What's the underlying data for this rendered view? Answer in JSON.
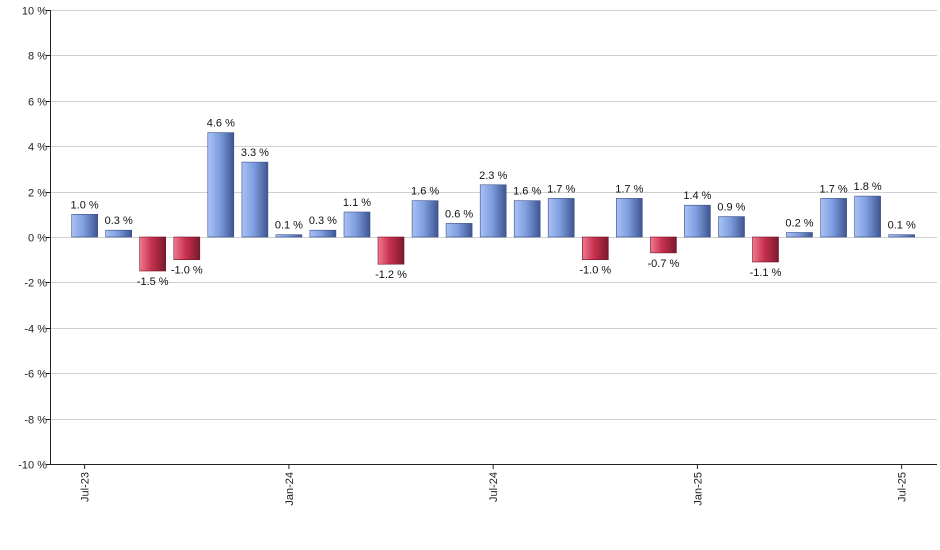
{
  "chart_data": {
    "type": "bar",
    "title": "",
    "xlabel": "",
    "ylabel": "",
    "ylim": [
      -10,
      10
    ],
    "yticks": [
      10,
      8,
      6,
      4,
      2,
      0,
      -2,
      -4,
      -6,
      -8,
      -10
    ],
    "ytick_labels": [
      "10 %",
      "8 %",
      "6 %",
      "4 %",
      "2 %",
      "0 %",
      "-2 %",
      "-4 %",
      "-6 %",
      "-8 %",
      "-10 %"
    ],
    "grid": true,
    "categories": [
      "Jul-23",
      "Aug-23",
      "Sep-23",
      "Oct-23",
      "Nov-23",
      "Dec-23",
      "Jan-24",
      "Feb-24",
      "Mar-24",
      "Apr-24",
      "May-24",
      "Jun-24",
      "Jul-24",
      "Aug-24",
      "Sep-24",
      "Oct-24",
      "Nov-24",
      "Dec-24",
      "Jan-25",
      "Feb-25",
      "Mar-25",
      "Apr-25",
      "May-25",
      "Jun-25",
      "Jul-25"
    ],
    "values": [
      1.0,
      0.3,
      -1.5,
      -1.0,
      4.6,
      3.3,
      0.1,
      0.3,
      1.1,
      -1.2,
      1.6,
      0.6,
      2.3,
      1.6,
      1.7,
      -1.0,
      1.7,
      -0.7,
      1.4,
      0.9,
      -1.1,
      0.2,
      1.7,
      1.8,
      0.1
    ],
    "value_labels": [
      "1.0 %",
      "0.3 %",
      "-1.5 %",
      "-1.0 %",
      "4.6 %",
      "3.3 %",
      "0.1 %",
      "0.3 %",
      "1.1 %",
      "-1.2 %",
      "1.6 %",
      "0.6 %",
      "2.3 %",
      "1.6 %",
      "1.7 %",
      "-1.0 %",
      "1.7 %",
      "-0.7 %",
      "1.4 %",
      "0.9 %",
      "-1.1 %",
      "0.2 %",
      "1.7 %",
      "1.8 %",
      "0.1 %"
    ],
    "xtick_labels": [
      {
        "index": 0,
        "label": "Jul-23"
      },
      {
        "index": 6,
        "label": "Jan-24"
      },
      {
        "index": 12,
        "label": "Jul-24"
      },
      {
        "index": 18,
        "label": "Jan-25"
      },
      {
        "index": 24,
        "label": "Jul-25"
      }
    ],
    "colors": {
      "positive": "#7f9ee0",
      "negative": "#c8314f"
    }
  }
}
